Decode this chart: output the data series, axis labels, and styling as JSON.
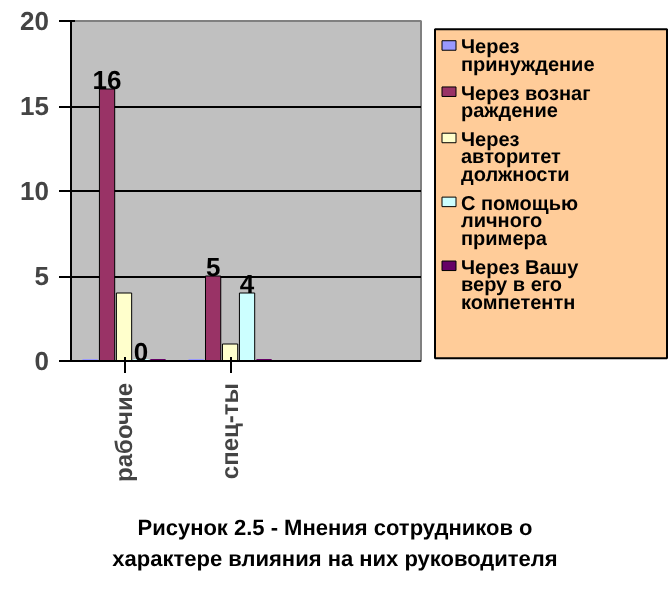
{
  "chart_data": {
    "type": "bar",
    "title": "Рисунок 2.5 - Мнения сотрудников о характере влияния на них руководителя",
    "categories": [
      "рабочие",
      "спец-ты"
    ],
    "series": [
      {
        "name": "Через принуждение",
        "color": "#9999ff",
        "values": [
          0,
          0
        ]
      },
      {
        "name": "Через вознаграждение",
        "color": "#993366",
        "values": [
          16,
          5
        ],
        "value_labels": [
          "16",
          "5"
        ]
      },
      {
        "name": "Через авторитет должности",
        "color": "#ffffcc",
        "values": [
          4,
          1
        ]
      },
      {
        "name": "С помощью личного примера",
        "color": "#ccffff",
        "values": [
          0,
          4
        ],
        "value_labels": [
          "0",
          "4"
        ]
      },
      {
        "name": "Через Вашу веру в его компетентн",
        "color": "#660066",
        "values": [
          0,
          0
        ]
      }
    ],
    "ylim": [
      0,
      20
    ],
    "yticks": [
      0,
      5,
      10,
      15,
      20
    ],
    "grid": "y",
    "legend": "right"
  }
}
